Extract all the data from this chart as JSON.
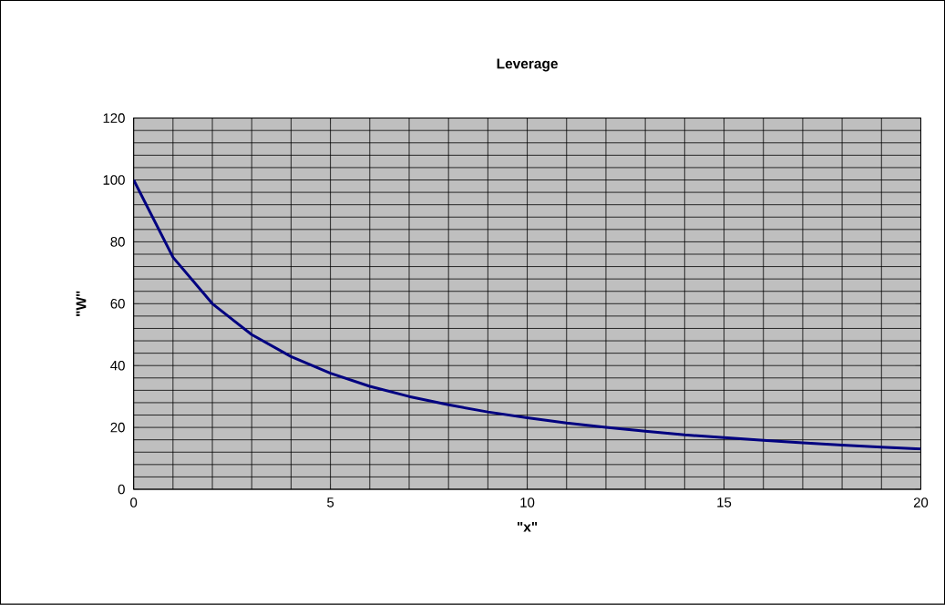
{
  "chart_data": {
    "type": "line",
    "title": "**Leverage**",
    "xlabel": "**\"x\"**",
    "ylabel": "**\"W\"**",
    "x": [
      0,
      1,
      2,
      3,
      4,
      5,
      6,
      7,
      8,
      9,
      10,
      11,
      12,
      13,
      14,
      15,
      16,
      17,
      18,
      19,
      20
    ],
    "series": [
      {
        "color": "#000080",
        "values": [
          100,
          75,
          60,
          50,
          42.9,
          37.5,
          33.3,
          30,
          27.3,
          25,
          23.1,
          21.4,
          20,
          18.8,
          17.6,
          16.7,
          15.8,
          15,
          14.3,
          13.6,
          13
        ]
      }
    ],
    "xlim": [
      0,
      20
    ],
    "xticks": [
      0,
      5,
      10,
      15,
      20
    ],
    "ylim": [
      0,
      120
    ],
    "yticks": [
      0,
      20,
      40,
      60,
      80,
      100,
      120
    ],
    "grid": true,
    "marker": "none",
    "line_style": "solid"
  }
}
